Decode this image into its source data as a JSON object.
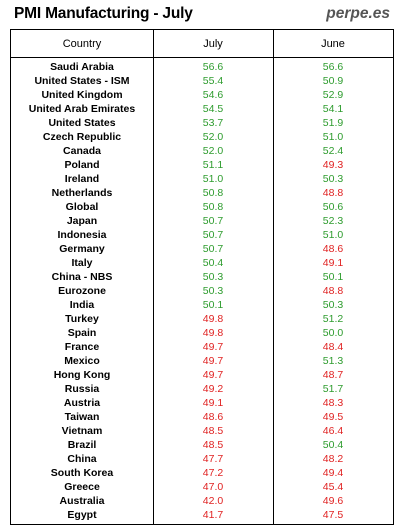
{
  "header": {
    "title": "PMI Manufacturing - July",
    "brand": "perpe.es"
  },
  "colors": {
    "expansion": "#2e9c2e",
    "contraction": "#e02222",
    "threshold": 50
  },
  "chart_data": {
    "type": "table",
    "columns": [
      "Country",
      "July",
      "June"
    ],
    "rows": [
      [
        "Saudi Arabia",
        56.6,
        56.6
      ],
      [
        "United States - ISM",
        55.4,
        50.9
      ],
      [
        "United Kingdom",
        54.6,
        52.9
      ],
      [
        "United Arab Emirates",
        54.5,
        54.1
      ],
      [
        "United States",
        53.7,
        51.9
      ],
      [
        "Czech Republic",
        52.0,
        51.0
      ],
      [
        "Canada",
        52.0,
        52.4
      ],
      [
        "Poland",
        51.1,
        49.3
      ],
      [
        "Ireland",
        51.0,
        50.3
      ],
      [
        "Netherlands",
        50.8,
        48.8
      ],
      [
        "Global",
        50.8,
        50.6
      ],
      [
        "Japan",
        50.7,
        52.3
      ],
      [
        "Indonesia",
        50.7,
        51.0
      ],
      [
        "Germany",
        50.7,
        48.6
      ],
      [
        "Italy",
        50.4,
        49.1
      ],
      [
        "China - NBS",
        50.3,
        50.1
      ],
      [
        "Eurozone",
        50.3,
        48.8
      ],
      [
        "India",
        50.1,
        50.3
      ],
      [
        "Turkey",
        49.8,
        51.2
      ],
      [
        "Spain",
        49.8,
        50.0
      ],
      [
        "France",
        49.7,
        48.4
      ],
      [
        "Mexico",
        49.7,
        51.3
      ],
      [
        "Hong Kong",
        49.7,
        48.7
      ],
      [
        "Russia",
        49.2,
        51.7
      ],
      [
        "Austria",
        49.1,
        48.3
      ],
      [
        "Taiwan",
        48.6,
        49.5
      ],
      [
        "Vietnam",
        48.5,
        46.4
      ],
      [
        "Brazil",
        48.5,
        50.4
      ],
      [
        "China",
        47.7,
        48.2
      ],
      [
        "South Korea",
        47.2,
        49.4
      ],
      [
        "Greece",
        47.0,
        45.4
      ],
      [
        "Australia",
        42.0,
        49.6
      ],
      [
        "Egypt",
        41.7,
        47.5
      ]
    ]
  }
}
